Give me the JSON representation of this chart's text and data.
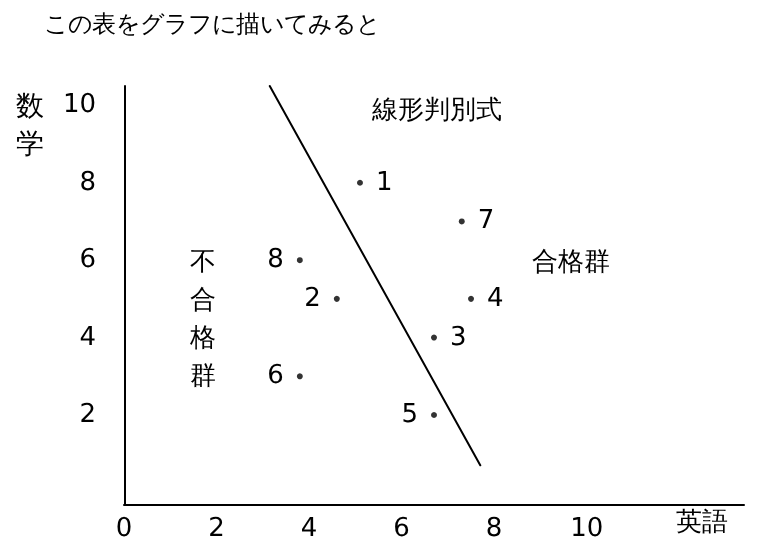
{
  "chart_data": {
    "type": "scatter",
    "title": "この表をグラフに描いてみると",
    "xlabel": "英語",
    "ylabel": "数学",
    "annotations": [
      "線形判別式",
      "合格群",
      "不合格群",
      {
        "text": "1",
        "x": 5.1,
        "y": 8
      },
      {
        "text": "2",
        "x": 4.6,
        "y": 5
      },
      {
        "text": "3",
        "x": 6.7,
        "y": 4
      },
      {
        "text": "4",
        "x": 7.5,
        "y": 5
      },
      {
        "text": "5",
        "x": 6.7,
        "y": 2
      },
      {
        "text": "6",
        "x": 3.8,
        "y": 3
      },
      {
        "text": "7",
        "x": 7.3,
        "y": 7
      },
      {
        "text": "8",
        "x": 3.8,
        "y": 6
      }
    ],
    "xlim": [
      0,
      13.4
    ],
    "ylim": [
      -0.3,
      10.5
    ],
    "xticks": [
      0,
      2,
      4,
      6,
      8,
      10
    ],
    "yticks": [
      2,
      4,
      6,
      8,
      10
    ],
    "grid": false,
    "marker": "circle",
    "series": [
      {
        "color": "#000000",
        "x": [
          5.1,
          4.6,
          6.7,
          7.5,
          6.7,
          3.8,
          7.3,
          3.8
        ],
        "values": [
          8,
          5,
          4,
          5,
          2,
          3,
          7,
          6
        ]
      },
      {
        "type": "line",
        "color": "#000000",
        "x": [
          3.15,
          7.7
        ],
        "values": [
          10.5,
          0.7
        ],
        "marker": "none",
        "line_style": "solid"
      }
    ]
  }
}
